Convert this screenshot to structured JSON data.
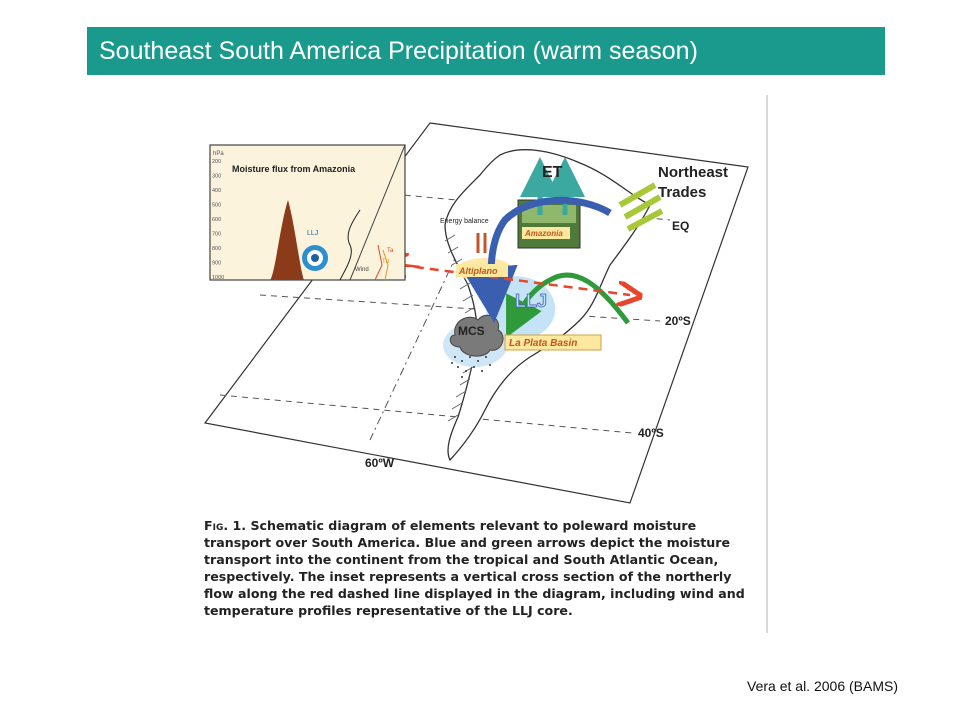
{
  "slide": {
    "title": "Southeast South America Precipitation (warm season)",
    "citation": "Vera et al. 2006 (BAMS)"
  },
  "figure": {
    "labels": {
      "northeast_trades_1": "Northeast",
      "northeast_trades_2": "Trades",
      "et": "ET",
      "eq": "EQ",
      "lat_20s": "20ºS",
      "lat_40s": "40ºS",
      "lon_60w": "60ºW",
      "amazonia": "Amazonia",
      "altiplano": "Altiplano",
      "llj": "LLJ",
      "mcs": "MCS",
      "la_plata_basin": "La Plata Basin",
      "energy_balance": "Energy balance"
    },
    "inset": {
      "title": "Moisture flux from Amazonia",
      "axis_unit": "hPa",
      "pressure_levels": [
        "200",
        "300",
        "400",
        "500",
        "600",
        "700",
        "800",
        "900",
        "1000"
      ],
      "llj_label": "LLJ",
      "wind_label": "Wind",
      "ta_label": "Ta",
      "td_label": "Td"
    },
    "caption_label": "Fig. 1.",
    "caption_text": "Schematic diagram of elements relevant to poleward moisture transport over South America. Blue and green arrows depict the moisture transport into the continent from the tropical and South Atlantic Ocean, respectively. The inset represents a vertical cross section of the northerly flow along the red dashed line displayed in the diagram, including wind and temperature profiles representative of the LLJ core.",
    "colors": {
      "title_bg": "#1a9a8c",
      "blue_arrow": "#3b5fb0",
      "green_arrow": "#2e9a3a",
      "red_dashed": "#e8452a",
      "trades_arrows": "#a8c83a",
      "inset_bg": "#fbf3dc",
      "label_box": "#fde8a0"
    }
  }
}
